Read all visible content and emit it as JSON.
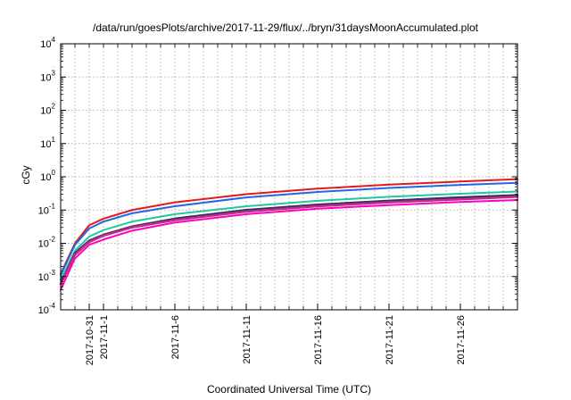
{
  "chart_data": {
    "type": "line",
    "title": "/data/run/goesPlots/archive/2017-11-29/flux/../bryn/31daysMoonAccumulated.plot",
    "xlabel": "Coordinated Universal Time (UTC)",
    "ylabel": "cGy",
    "y_scale": "log",
    "ylim": [
      0.0001,
      10000
    ],
    "y_ticks": [
      {
        "value": 0.0001,
        "base": "10",
        "exp": "-4"
      },
      {
        "value": 0.001,
        "base": "10",
        "exp": "-3"
      },
      {
        "value": 0.01,
        "base": "10",
        "exp": "-2"
      },
      {
        "value": 0.1,
        "base": "10",
        "exp": "-1"
      },
      {
        "value": 1,
        "base": "10",
        "exp": "0"
      },
      {
        "value": 10,
        "base": "10",
        "exp": "1"
      },
      {
        "value": 100,
        "base": "10",
        "exp": "2"
      },
      {
        "value": 1000,
        "base": "10",
        "exp": "3"
      },
      {
        "value": 10000,
        "base": "10",
        "exp": "4"
      }
    ],
    "xlim": [
      "2017-10-29",
      "2017-11-30"
    ],
    "x_ticks": [
      "2017-10-31",
      "2017-11-1",
      "2017-11-6",
      "2017-11-11",
      "2017-11-16",
      "2017-11-21",
      "2017-11-26"
    ],
    "x_tick_dates": [
      "2017-10-31",
      "2017-11-01",
      "2017-11-06",
      "2017-11-11",
      "2017-11-16",
      "2017-11-21",
      "2017-11-26"
    ],
    "grid": true,
    "legend": "none",
    "series": [
      {
        "color": "#e31a1c",
        "width": 2,
        "x": [
          "2017-10-29",
          "2017-10-30",
          "2017-10-31",
          "2017-11-01",
          "2017-11-03",
          "2017-11-06",
          "2017-11-11",
          "2017-11-16",
          "2017-11-21",
          "2017-11-26",
          "2017-11-30"
        ],
        "values": [
          0.0012,
          0.01,
          0.035,
          0.055,
          0.1,
          0.17,
          0.3,
          0.44,
          0.58,
          0.72,
          0.85
        ]
      },
      {
        "color": "#2166e8",
        "width": 2,
        "x": [
          "2017-10-29",
          "2017-10-30",
          "2017-10-31",
          "2017-11-01",
          "2017-11-03",
          "2017-11-06",
          "2017-11-11",
          "2017-11-16",
          "2017-11-21",
          "2017-11-26",
          "2017-11-30"
        ],
        "values": [
          0.0011,
          0.009,
          0.028,
          0.045,
          0.08,
          0.13,
          0.24,
          0.35,
          0.46,
          0.57,
          0.66
        ]
      },
      {
        "color": "#20c8a0",
        "width": 2,
        "x": [
          "2017-10-29",
          "2017-10-30",
          "2017-10-31",
          "2017-11-01",
          "2017-11-03",
          "2017-11-06",
          "2017-11-11",
          "2017-11-16",
          "2017-11-21",
          "2017-11-26",
          "2017-11-30"
        ],
        "values": [
          0.0008,
          0.006,
          0.016,
          0.025,
          0.045,
          0.075,
          0.13,
          0.19,
          0.25,
          0.31,
          0.36
        ]
      },
      {
        "color": "#3a2a6e",
        "width": 2.5,
        "x": [
          "2017-10-29",
          "2017-10-30",
          "2017-10-31",
          "2017-11-01",
          "2017-11-03",
          "2017-11-06",
          "2017-11-11",
          "2017-11-16",
          "2017-11-21",
          "2017-11-26",
          "2017-11-30"
        ],
        "values": [
          0.0006,
          0.005,
          0.012,
          0.018,
          0.032,
          0.055,
          0.1,
          0.145,
          0.19,
          0.24,
          0.28
        ]
      },
      {
        "color": "#c0307a",
        "width": 2.5,
        "x": [
          "2017-10-29",
          "2017-10-30",
          "2017-10-31",
          "2017-11-01",
          "2017-11-03",
          "2017-11-06",
          "2017-11-11",
          "2017-11-16",
          "2017-11-21",
          "2017-11-26",
          "2017-11-30"
        ],
        "values": [
          0.0006,
          0.0045,
          0.011,
          0.017,
          0.03,
          0.05,
          0.09,
          0.13,
          0.17,
          0.21,
          0.25
        ]
      },
      {
        "color": "#ff00c8",
        "width": 2,
        "x": [
          "2017-10-29",
          "2017-10-30",
          "2017-10-31",
          "2017-11-01",
          "2017-11-03",
          "2017-11-06",
          "2017-11-11",
          "2017-11-16",
          "2017-11-21",
          "2017-11-26",
          "2017-11-30"
        ],
        "values": [
          0.0004,
          0.0035,
          0.009,
          0.013,
          0.024,
          0.042,
          0.075,
          0.11,
          0.14,
          0.175,
          0.2
        ]
      }
    ]
  }
}
